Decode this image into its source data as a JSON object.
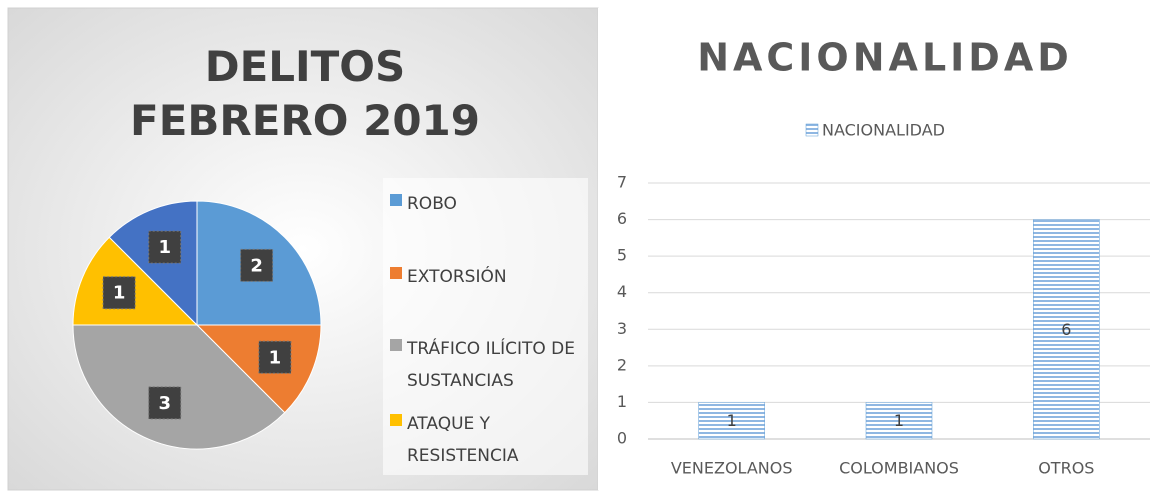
{
  "chart_data": [
    {
      "type": "pie",
      "title": "DELITOS FEBRERO 2019",
      "categories": [
        "ROBO",
        "EXTORSIÓN",
        "TRÁFICO ILÍCITO DE SUSTANCIAS",
        "ATAQUE Y RESISTENCIA",
        null
      ],
      "values": [
        2,
        1,
        3,
        1,
        1
      ],
      "colors": [
        "#5b9bd5",
        "#ed7d31",
        "#a5a5a5",
        "#ffc000",
        "#4472c4"
      ],
      "legend": "right"
    },
    {
      "type": "bar",
      "title": "NACIONALIDAD",
      "categories": [
        "VENEZOLANOS",
        "COLOMBIANOS",
        "OTROS"
      ],
      "series": [
        {
          "name": "NACIONALIDAD",
          "color": "#5b9bd5",
          "values": [
            1,
            1,
            6
          ]
        }
      ],
      "ylim": [
        0,
        7
      ],
      "yticks": [
        0,
        1,
        2,
        3,
        4,
        5,
        6,
        7
      ],
      "grid": true,
      "legend": "top"
    }
  ]
}
